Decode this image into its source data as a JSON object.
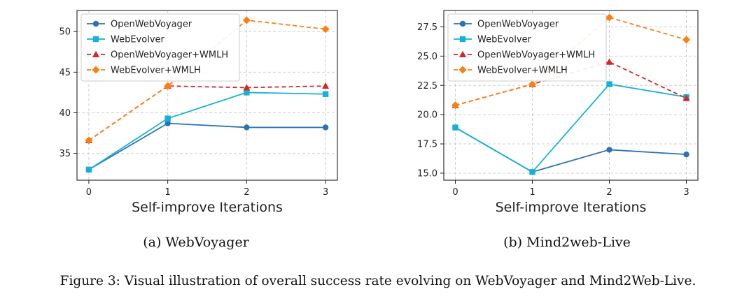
{
  "chart_data": [
    {
      "type": "line",
      "title": "",
      "xlabel": "Self-improve Iterations",
      "ylabel": "",
      "subcaption": "(a)  WebVoyager",
      "x": [
        0,
        1,
        2,
        3
      ],
      "xlim": [
        -0.15,
        3.15
      ],
      "ylim": [
        31.7,
        52.6
      ],
      "yticks": [
        35,
        40,
        45,
        50
      ],
      "ytick_labels": [
        "35",
        "40",
        "45",
        "50"
      ],
      "grid": true,
      "legend_position": "top-left",
      "series": [
        {
          "name": "OpenWebVoyager",
          "values": [
            33.0,
            38.7,
            38.2,
            38.2
          ],
          "color": "#2b73b3",
          "marker": "circle",
          "dashed": false
        },
        {
          "name": "WebEvolver",
          "values": [
            33.0,
            39.3,
            42.5,
            42.3
          ],
          "color": "#16b1d8",
          "marker": "square",
          "dashed": false
        },
        {
          "name": "OpenWebVoyager+WMLH",
          "values": [
            36.6,
            43.3,
            43.1,
            43.3
          ],
          "color": "#d62728",
          "marker": "triangle",
          "dashed": true
        },
        {
          "name": "WebEvolver+WMLH",
          "values": [
            36.6,
            43.3,
            51.4,
            50.3
          ],
          "color": "#ff7f0e",
          "marker": "diamond",
          "dashed": true
        }
      ]
    },
    {
      "type": "line",
      "title": "",
      "xlabel": "Self-improve Iterations",
      "ylabel": "",
      "subcaption": "(b)  Mind2web-Live",
      "x": [
        0,
        1,
        2,
        3
      ],
      "xlim": [
        -0.15,
        3.15
      ],
      "ylim": [
        14.4,
        28.9
      ],
      "yticks": [
        15.0,
        17.5,
        20.0,
        22.5,
        25.0,
        27.5
      ],
      "ytick_labels": [
        "15.0",
        "17.5",
        "20.0",
        "22.5",
        "25.0",
        "27.5"
      ],
      "grid": true,
      "legend_position": "top-left",
      "series": [
        {
          "name": "OpenWebVoyager",
          "values": [
            18.9,
            15.1,
            17.0,
            16.6
          ],
          "color": "#2b73b3",
          "marker": "circle",
          "dashed": false
        },
        {
          "name": "WebEvolver",
          "values": [
            18.9,
            15.1,
            22.6,
            21.5
          ],
          "color": "#16b1d8",
          "marker": "square",
          "dashed": false
        },
        {
          "name": "OpenWebVoyager+WMLH",
          "values": [
            20.8,
            22.6,
            24.5,
            21.4
          ],
          "color": "#d62728",
          "marker": "triangle",
          "dashed": true
        },
        {
          "name": "WebEvolver+WMLH",
          "values": [
            20.8,
            22.6,
            28.3,
            26.4
          ],
          "color": "#ff7f0e",
          "marker": "diamond",
          "dashed": true
        }
      ]
    }
  ],
  "figure_caption": "Figure 3: Visual illustration of overall success rate evolving on WebVoyager and Mind2Web-Live."
}
